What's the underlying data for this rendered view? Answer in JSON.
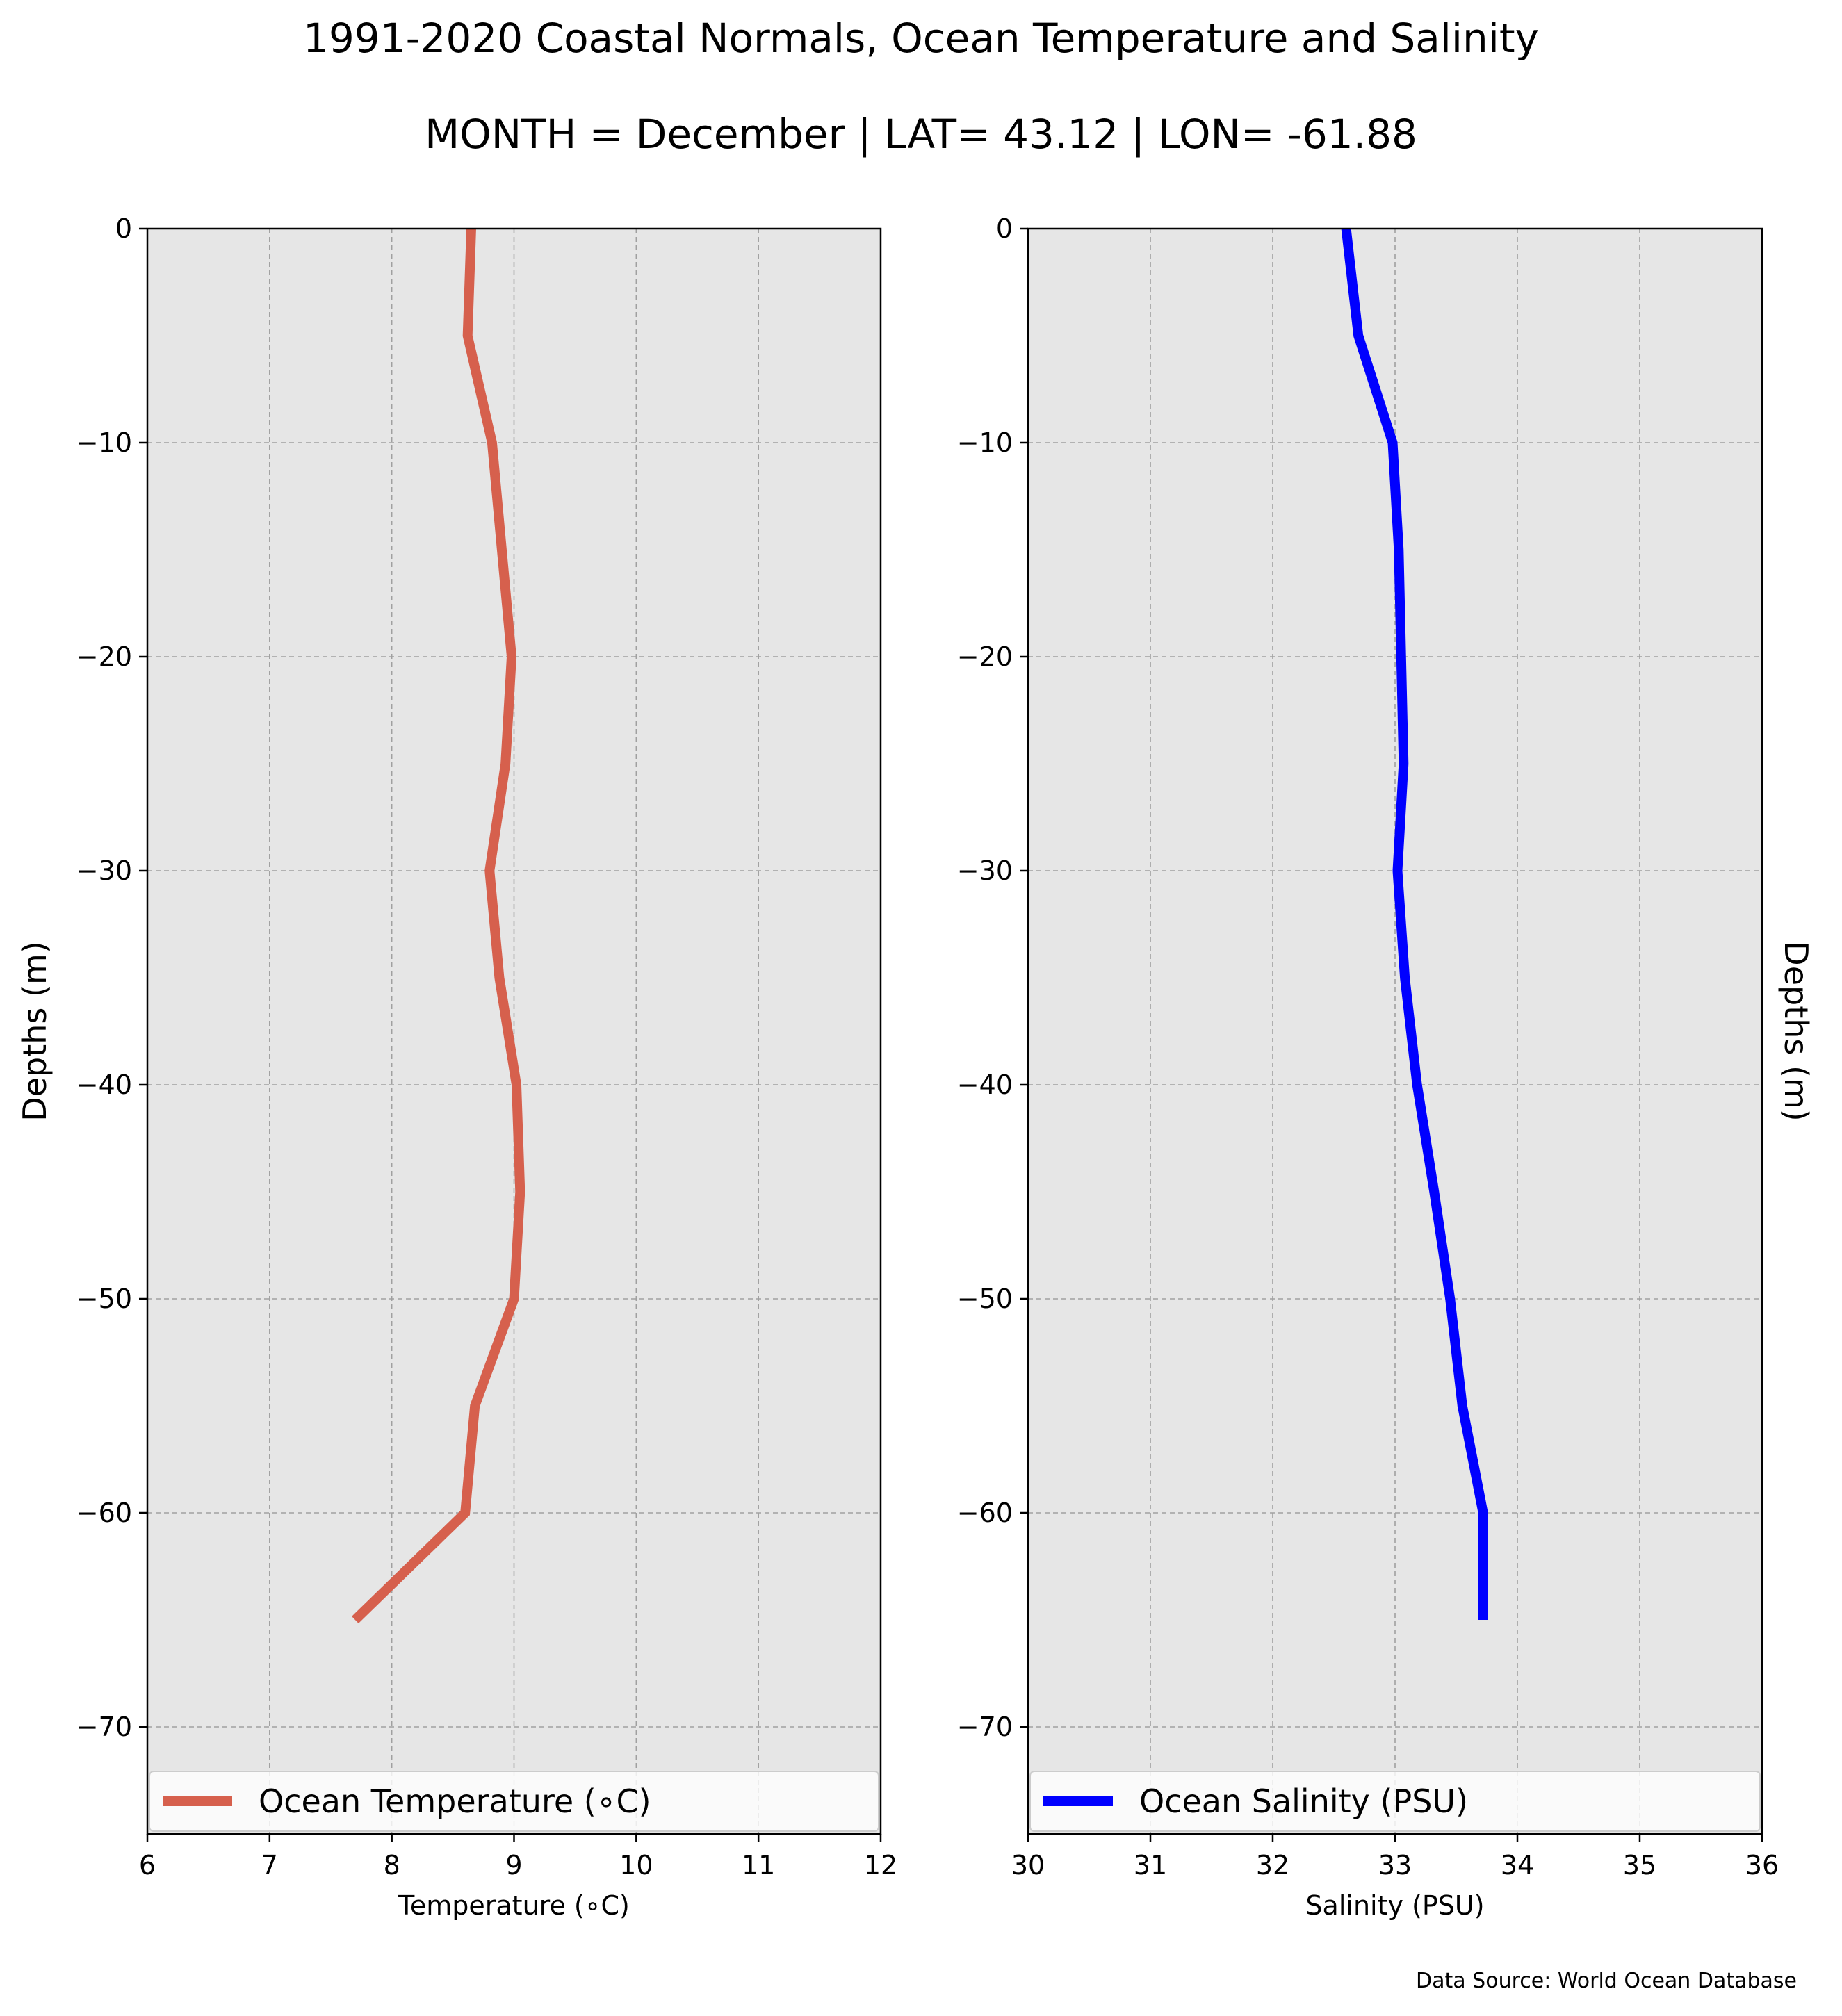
{
  "title": "1991-2020 Coastal Normals, Ocean Temperature and Salinity",
  "subtitle": "MONTH = December | LAT= 43.12 | LON= -61.88",
  "source": "Data Source: World Ocean Database",
  "chart_data": [
    {
      "type": "line",
      "xlabel": "Temperature (∘C)",
      "ylabel": "Depths (m)",
      "xlim": [
        6,
        12
      ],
      "ylim": [
        -75,
        0
      ],
      "xticks": [
        6,
        7,
        8,
        9,
        10,
        11,
        12
      ],
      "yticks": [
        0,
        -10,
        -20,
        -30,
        -40,
        -50,
        -60,
        -70
      ],
      "grid": true,
      "legend_position": "bottom",
      "series": [
        {
          "name": "Ocean Temperature (∘C)",
          "color": "#d6604d",
          "x": [
            8.65,
            8.62,
            8.82,
            8.9,
            8.98,
            8.93,
            8.8,
            8.88,
            9.02,
            9.05,
            9.0,
            8.68,
            8.6,
            7.7
          ],
          "y": [
            0,
            -5,
            -10,
            -15,
            -20,
            -25,
            -30,
            -35,
            -40,
            -45,
            -50,
            -55,
            -60,
            -65
          ]
        }
      ]
    },
    {
      "type": "line",
      "xlabel": "Salinity (PSU)",
      "ylabel": "Depths (m)",
      "xlim": [
        30,
        36
      ],
      "ylim": [
        -75,
        0
      ],
      "xticks": [
        30,
        31,
        32,
        33,
        34,
        35,
        36
      ],
      "yticks": [
        0,
        -10,
        -20,
        -30,
        -40,
        -50,
        -60,
        -70
      ],
      "grid": true,
      "legend_position": "bottom",
      "series": [
        {
          "name": "Ocean Salinity (PSU)",
          "color": "#0000ff",
          "x": [
            32.6,
            32.7,
            32.98,
            33.03,
            33.05,
            33.07,
            33.02,
            33.08,
            33.18,
            33.32,
            33.45,
            33.55,
            33.72,
            33.72
          ],
          "y": [
            0,
            -5,
            -10,
            -15,
            -20,
            -25,
            -30,
            -35,
            -40,
            -45,
            -50,
            -55,
            -60,
            -65
          ]
        }
      ]
    }
  ]
}
